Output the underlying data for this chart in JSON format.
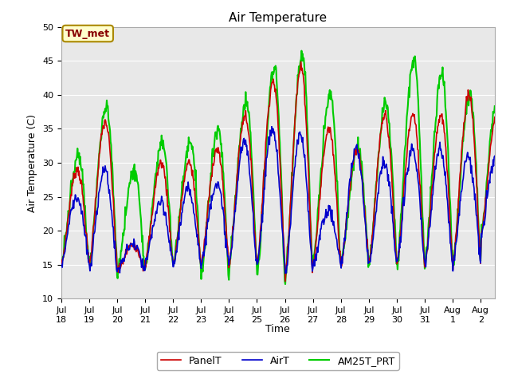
{
  "title": "Air Temperature",
  "xlabel": "Time",
  "ylabel": "Air Temperature (C)",
  "ylim": [
    10,
    50
  ],
  "yticks": [
    10,
    15,
    20,
    25,
    30,
    35,
    40,
    45,
    50
  ],
  "annotation_text": "TW_met",
  "annotation_color": "#880000",
  "annotation_bg": "#ffffcc",
  "annotation_border": "#aa8800",
  "bg_color": "#e8e8e8",
  "line_colors": {
    "PanelT": "#cc0000",
    "AirT": "#0000cc",
    "AM25T_PRT": "#00cc00"
  },
  "line_widths": {
    "PanelT": 1.2,
    "AirT": 1.2,
    "AM25T_PRT": 1.5
  },
  "xtick_labels": [
    "Jul 18",
    "Jul 19",
    "Jul 20",
    "Jul 21",
    "Jul 22",
    "Jul 23",
    "Jul 24",
    "Jul 25",
    "Jul 26",
    "Jul 27",
    "Jul 28",
    "Jul 29",
    "Jul 30",
    "Jul 31",
    "Aug 1",
    "Aug 2"
  ],
  "title_fontsize": 11,
  "axis_label_fontsize": 9,
  "tick_fontsize": 8,
  "legend_fontsize": 9,
  "red_peaks": [
    29,
    36,
    18,
    30,
    30,
    32,
    37,
    42,
    44,
    35,
    32,
    37,
    37,
    37,
    40,
    37
  ],
  "blue_peaks": [
    25,
    29,
    18,
    24,
    26,
    27,
    33,
    35,
    34,
    23,
    32,
    30,
    32,
    32,
    31,
    31
  ],
  "green_peaks": [
    31,
    38,
    29,
    33,
    33,
    35,
    39,
    44,
    46,
    40,
    32,
    39,
    45,
    43,
    40,
    40
  ],
  "red_mins": [
    15,
    15,
    14,
    15,
    15,
    15,
    15,
    15,
    13,
    15,
    15,
    15,
    15,
    15,
    15,
    19
  ],
  "blue_mins": [
    15,
    14,
    14,
    15,
    15,
    15,
    15,
    15,
    13,
    15,
    15,
    15,
    15,
    15,
    15,
    19
  ],
  "green_mins": [
    15,
    15,
    14,
    15,
    15,
    13,
    15,
    13,
    13,
    15,
    15,
    15,
    15,
    15,
    15,
    19
  ]
}
